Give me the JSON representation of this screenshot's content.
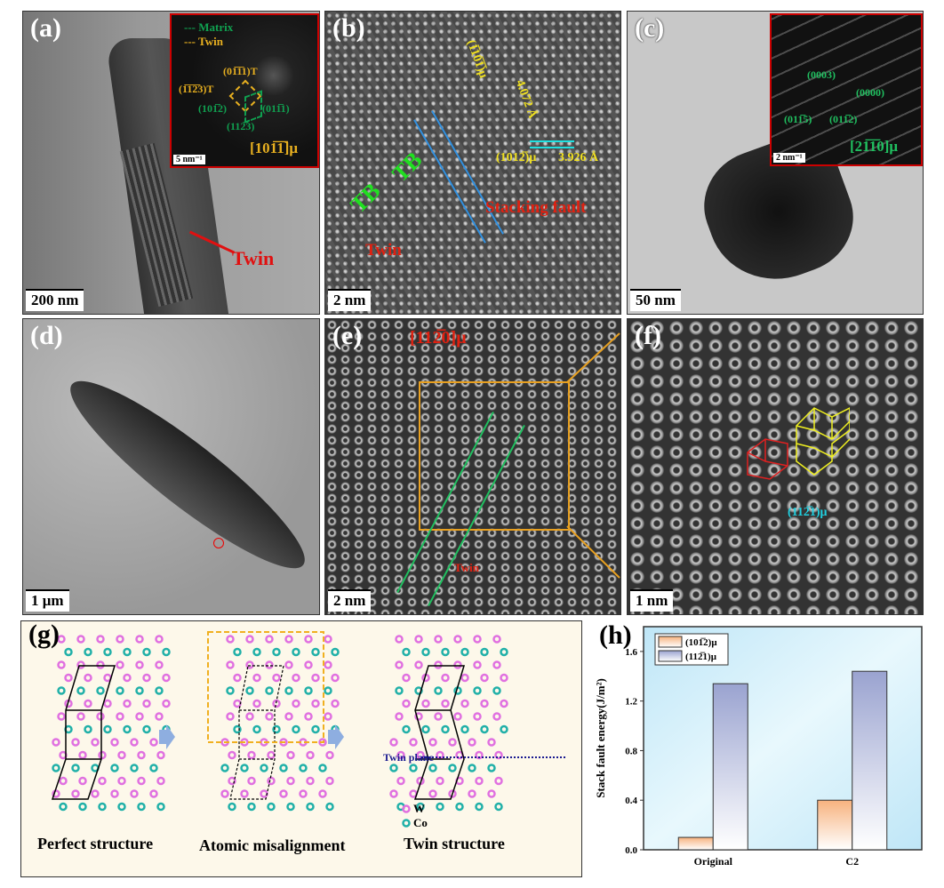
{
  "panels": {
    "a": {
      "label": "(a)",
      "scale": "200 nm",
      "annotation": "Twin",
      "inset": {
        "legend_matrix": "--- Matrix",
        "legend_twin": "--- Twin",
        "spots": [
          "(01̅1̅1)T",
          "(1̅1̅2̅3)T",
          "(101̅2)",
          "(011̅1)",
          "(112̅3)"
        ],
        "zone": "[101̅1̅]μ",
        "scale": "5 nm⁻¹"
      }
    },
    "b": {
      "label": "(b)",
      "scale": "2 nm",
      "tb1": "TB",
      "tb2": "TB",
      "twin": "Twin",
      "stacking": "Stacking fault",
      "plane1": "(1̅10̅1̅)μ",
      "d1": "4.072 Å",
      "plane2": "(1012̅)μ",
      "d2": "3.926 Å"
    },
    "c": {
      "label": "(c)",
      "scale": "50 nm",
      "inset": {
        "spots": [
          "(0003)",
          "(0000)",
          "(011̅5)",
          "(011̅2)"
        ],
        "zone": "[21̅1̅0]μ",
        "scale": "2 nm⁻¹"
      }
    },
    "d": {
      "label": "(d)",
      "scale": "1 μm"
    },
    "e": {
      "label": "(e)",
      "scale": "2 nm",
      "zone": "[112̅0]μ",
      "twin": "Twin"
    },
    "f": {
      "label": "(f)",
      "scale": "1 nm",
      "plane": "(112̅1)μ"
    },
    "g": {
      "label": "(g)",
      "captions": [
        "Perfect structure",
        "Atomic misalignment",
        "Twin structure"
      ],
      "twin_plane": "Twin plane",
      "legend": [
        "W",
        "Co"
      ],
      "colors": {
        "W": "#e070e0",
        "Co": "#20b0a8"
      }
    }
  },
  "chart_data": {
    "type": "bar",
    "label": "(h)",
    "categories": [
      "Original",
      "C2"
    ],
    "series": [
      {
        "name": "(101̅2)μ",
        "values": [
          0.1,
          0.4
        ],
        "color": "#f7b27e"
      },
      {
        "name": "(112̅1)μ",
        "values": [
          1.34,
          1.44
        ],
        "color": "#9aa3d0"
      }
    ],
    "ylabel": "Stack fault energy(J/m²)",
    "ylim": [
      0,
      1.8
    ],
    "yticks": [
      "0.0",
      "0.4",
      "0.8",
      "1.2",
      "1.6"
    ],
    "legend": "top-left",
    "grid": false
  }
}
